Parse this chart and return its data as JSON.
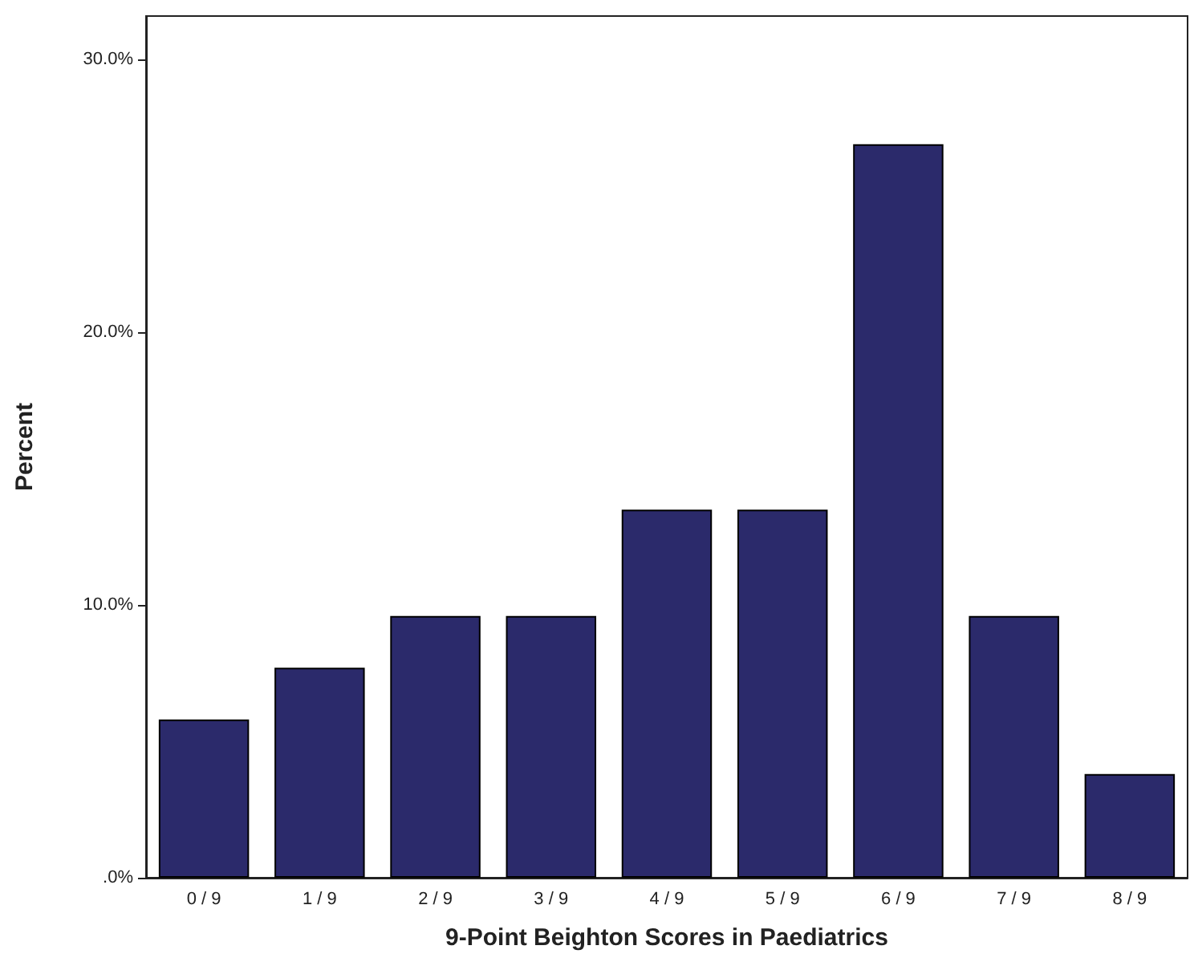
{
  "chart_data": {
    "type": "bar",
    "xlabel": "9-Point Beighton Scores in Paediatrics",
    "ylabel": "Percent",
    "categories": [
      "0 / 9",
      "1 / 9",
      "2 / 9",
      "3 / 9",
      "4 / 9",
      "5 / 9",
      "6 / 9",
      "7 / 9",
      "8 / 9"
    ],
    "values": [
      5.8,
      7.7,
      9.6,
      9.6,
      13.5,
      13.5,
      26.9,
      9.6,
      3.8
    ],
    "color": "#2b2a6b",
    "ylim": [
      0,
      31.6
    ],
    "yticks": [
      {
        "value": 0,
        "label": ".0%"
      },
      {
        "value": 10,
        "label": "10.0%"
      },
      {
        "value": 20,
        "label": "20.0%"
      },
      {
        "value": 30,
        "label": "30.0%"
      }
    ],
    "grid": false
  }
}
